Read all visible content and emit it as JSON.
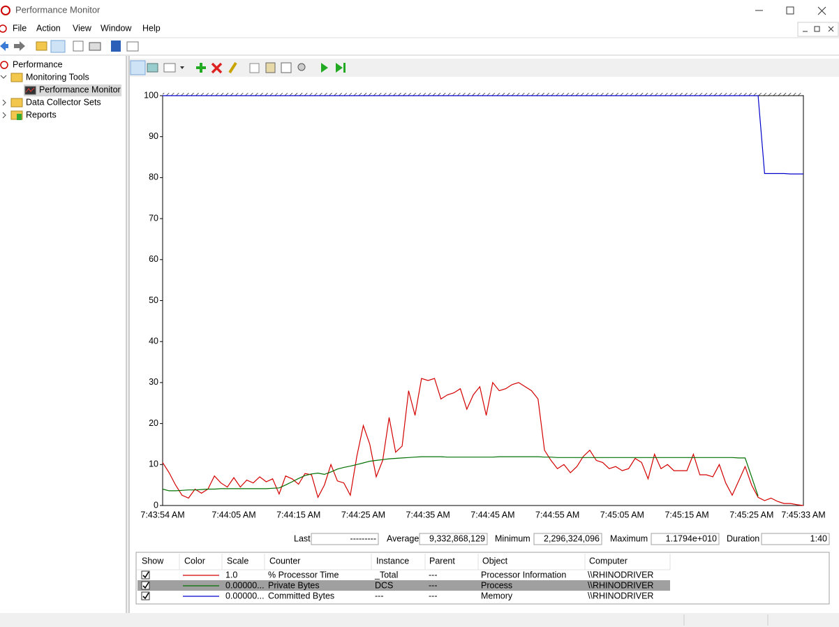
{
  "window": {
    "title": "Performance Monitor"
  },
  "menu": [
    "File",
    "Action",
    "View",
    "Window",
    "Help"
  ],
  "tree": [
    {
      "label": "Performance",
      "children": [
        {
          "label": "Monitoring Tools",
          "children": [
            {
              "label": "Performance Monitor"
            }
          ]
        },
        {
          "label": "Data Collector Sets"
        },
        {
          "label": "Reports"
        }
      ]
    }
  ],
  "chart_data": {
    "type": "line",
    "x": [
      0,
      1,
      2,
      3,
      4,
      5,
      6,
      7,
      8,
      9,
      10,
      11,
      12,
      13,
      14,
      15,
      16,
      17,
      18,
      19,
      20,
      21,
      22,
      23,
      24,
      25,
      26,
      27,
      28,
      29,
      30,
      31,
      32,
      33,
      34,
      35,
      36,
      37,
      38,
      39,
      40,
      41,
      42,
      43,
      44,
      45,
      46,
      47,
      48,
      49,
      50,
      51,
      52,
      53,
      54,
      55,
      56,
      57,
      58,
      59,
      60,
      61,
      62,
      63,
      64,
      65,
      66,
      67,
      68,
      69,
      70,
      71,
      72,
      73,
      74,
      75,
      76,
      77,
      78,
      79,
      80,
      81,
      82,
      83,
      84,
      85,
      86,
      87,
      88,
      89,
      90,
      91,
      92,
      93,
      94,
      95,
      96,
      97,
      98,
      99
    ],
    "xlim": [
      0,
      99
    ],
    "xticks": [
      {
        "value": 0,
        "label": "7:43:54 AM"
      },
      {
        "value": 11,
        "label": "7:44:05 AM"
      },
      {
        "value": 21,
        "label": "7:44:15 AM"
      },
      {
        "value": 31,
        "label": "7:44:25 AM"
      },
      {
        "value": 41,
        "label": "7:44:35 AM"
      },
      {
        "value": 51,
        "label": "7:44:45 AM"
      },
      {
        "value": 61,
        "label": "7:44:55 AM"
      },
      {
        "value": 71,
        "label": "7:45:05 AM"
      },
      {
        "value": 81,
        "label": "7:45:15 AM"
      },
      {
        "value": 91,
        "label": "7:45:25 AM"
      },
      {
        "value": 99,
        "label": "7:45:33 AM"
      }
    ],
    "ylim": [
      0,
      100
    ],
    "yticks": [
      0,
      10,
      20,
      30,
      40,
      50,
      60,
      70,
      80,
      90,
      100
    ],
    "columns": [
      "Show",
      "Color",
      "Scale",
      "Counter",
      "Instance",
      "Parent",
      "Object",
      "Computer"
    ],
    "series": [
      {
        "name": "% Processor Time",
        "color": "#d40000",
        "show": true,
        "scale": "1.0",
        "instance": "_Total",
        "parent": "---",
        "object": "Processor Information",
        "computer": "\\\\RHINODRIVER",
        "values": [
          10.5,
          8,
          5,
          2.5,
          1.8,
          4,
          3,
          4,
          7.2,
          5.5,
          4.5,
          6.8,
          4.5,
          6.2,
          5.5,
          7,
          5.8,
          6.5,
          2.8,
          7.2,
          6.5,
          5.2,
          7.8,
          7.5,
          2,
          5,
          10,
          6,
          5.5,
          2.5,
          12,
          19.5,
          15,
          7,
          11,
          21.5,
          13,
          14.5,
          28,
          22,
          31,
          30.5,
          31,
          26,
          27,
          27.5,
          28.5,
          23.5,
          27,
          29,
          22,
          30,
          28,
          28.5,
          29.5,
          30,
          29,
          28,
          26,
          13.5,
          11,
          9,
          10,
          8,
          9.5,
          12,
          13.5,
          11,
          10.5,
          9,
          9.5,
          8.5,
          9,
          11.5,
          10.5,
          6.5,
          12.5,
          9,
          10,
          8.5,
          8.5,
          8.5,
          12.5,
          7.5,
          7.5,
          7,
          10,
          5.5,
          2.5,
          6,
          9.5,
          5,
          2,
          1.2,
          1.8,
          1,
          0.5,
          0.5,
          0.2,
          0
        ]
      },
      {
        "name": "Private Bytes",
        "color": "#007000",
        "show": true,
        "scale": "0.00000...",
        "instance": "DCS",
        "parent": "---",
        "object": "Process",
        "computer": "\\\\RHINODRIVER",
        "values": [
          4,
          3.6,
          3.6,
          3.7,
          3.8,
          3.8,
          3.9,
          4,
          4,
          4.1,
          4.1,
          4.1,
          4.1,
          4.1,
          4.1,
          4.1,
          4.1,
          4.2,
          4.3,
          5,
          5.8,
          6.6,
          7.3,
          7.7,
          7.9,
          7.6,
          8.2,
          8.9,
          9.3,
          9.6,
          10,
          10.4,
          10.8,
          11,
          11.2,
          11.4,
          11.5,
          11.6,
          11.7,
          11.8,
          11.9,
          11.9,
          11.9,
          11.9,
          11.8,
          11.8,
          11.8,
          11.8,
          11.8,
          11.8,
          11.8,
          11.8,
          11.9,
          11.9,
          11.9,
          11.9,
          11.9,
          11.9,
          11.9,
          11.8,
          11.8,
          11.7,
          11.7,
          11.7,
          11.7,
          11.7,
          11.7,
          11.7,
          11.7,
          11.7,
          11.7,
          11.7,
          11.7,
          11.7,
          11.7,
          11.7,
          11.7,
          11.7,
          11.7,
          11.7,
          11.7,
          11.7,
          11.7,
          11.7,
          11.7,
          11.7,
          11.7,
          11.7,
          11.7,
          11.6,
          11.6,
          7,
          2.3,
          null,
          null,
          null,
          null,
          null,
          null,
          null
        ]
      },
      {
        "name": "Committed Bytes",
        "color": "#0000cc",
        "show": true,
        "scale": "0.00000...",
        "instance": "---",
        "parent": "---",
        "object": "Memory",
        "computer": "\\\\RHINODRIVER",
        "values": [
          100,
          100,
          100,
          100,
          100,
          100,
          100,
          100,
          100,
          100,
          100,
          100,
          100,
          100,
          100,
          100,
          100,
          100,
          100,
          100,
          100,
          100,
          100,
          100,
          100,
          100,
          100,
          100,
          100,
          100,
          100,
          100,
          100,
          100,
          100,
          100,
          100,
          100,
          100,
          100,
          100,
          100,
          100,
          100,
          100,
          100,
          100,
          100,
          100,
          100,
          100,
          100,
          100,
          100,
          100,
          100,
          100,
          100,
          100,
          100,
          100,
          100,
          100,
          100,
          100,
          100,
          100,
          100,
          100,
          100,
          100,
          100,
          100,
          100,
          100,
          100,
          100,
          100,
          100,
          100,
          100,
          100,
          100,
          100,
          100,
          100,
          100,
          100,
          100,
          100,
          100,
          100,
          100,
          81,
          81,
          81,
          81,
          80.9,
          80.9,
          80.9
        ]
      }
    ]
  },
  "stats": [
    {
      "label": "Last",
      "value": "---------"
    },
    {
      "label": "Average",
      "value": "9,332,868,129"
    },
    {
      "label": "Minimum",
      "value": "2,296,324,096"
    },
    {
      "label": "Maximum",
      "value": "1.1794e+010"
    },
    {
      "label": "Duration",
      "value": "1:40"
    }
  ]
}
